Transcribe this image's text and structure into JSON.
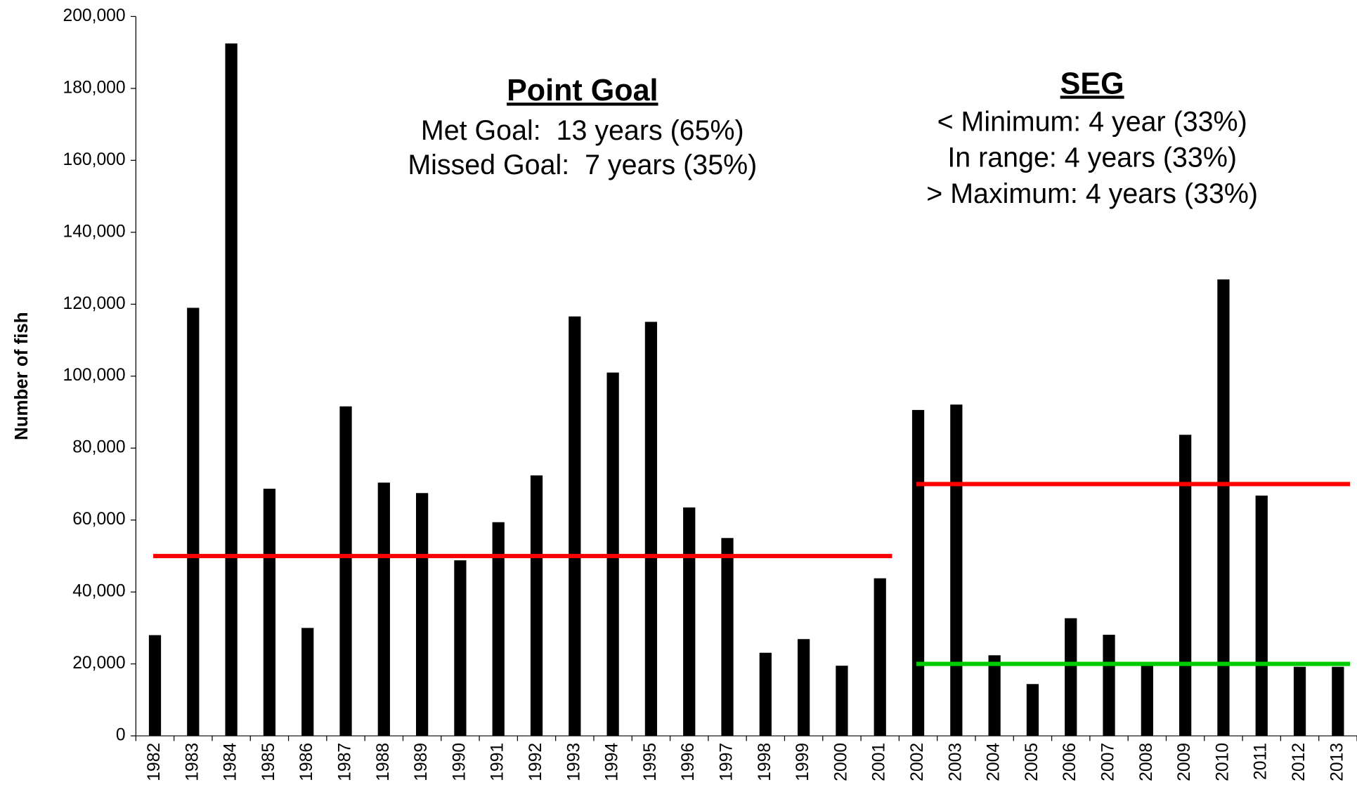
{
  "chart_data": {
    "type": "bar",
    "y_label": "Number of fish",
    "categories": [
      "1982",
      "1983",
      "1984",
      "1985",
      "1986",
      "1987",
      "1988",
      "1989",
      "1990",
      "1991",
      "1992",
      "1993",
      "1994",
      "1995",
      "1996",
      "1997",
      "1998",
      "1999",
      "2000",
      "2001",
      "2002",
      "2003",
      "2004",
      "2005",
      "2006",
      "2007",
      "2008",
      "2009",
      "2010",
      "2011",
      "2012",
      "2013"
    ],
    "values": [
      28000,
      119000,
      192500,
      68700,
      30000,
      91600,
      70400,
      67500,
      48800,
      59400,
      72400,
      116600,
      101000,
      115100,
      63500,
      55000,
      23100,
      26900,
      19500,
      43800,
      90600,
      92100,
      22400,
      14400,
      32700,
      28100,
      19900,
      83700,
      126900,
      66800,
      19200,
      19200
    ],
    "color": "#000000",
    "ylim": [
      0,
      200000
    ],
    "yticks": [
      0,
      {
        "value": 20000,
        "label": "20,000"
      },
      {
        "value": 40000,
        "label": "40,000"
      },
      {
        "value": 60000,
        "label": "60,000"
      },
      {
        "value": 80000,
        "label": "80,000"
      },
      {
        "value": 100000,
        "label": "100,000"
      },
      {
        "value": 120000,
        "label": "120,000"
      },
      {
        "value": 140000,
        "label": "140,000"
      },
      {
        "value": 160000,
        "label": "160,000"
      },
      {
        "value": 180000,
        "label": "180,000"
      },
      {
        "value": 200000,
        "label": "200,000"
      }
    ],
    "grid": false,
    "reference_lines": [
      {
        "value": 50000,
        "from": "1982",
        "to": "2001",
        "color": "#ff0000"
      },
      {
        "value": 70000,
        "from": "2002",
        "to": "2013",
        "color": "#ff0000"
      },
      {
        "value": 20000,
        "from": "2002",
        "to": "2013",
        "color": "#00cc00"
      }
    ],
    "annotations": [
      {
        "title": "Point Goal",
        "lines": [
          "Met Goal:  13 years (65%)",
          "Missed Goal:  7 years (35%)"
        ]
      },
      {
        "title": "SEG",
        "lines": [
          "< Minimum: 4 year (33%)",
          "In range: 4 years (33%)",
          "> Maximum: 4 years (33%)"
        ]
      }
    ]
  }
}
